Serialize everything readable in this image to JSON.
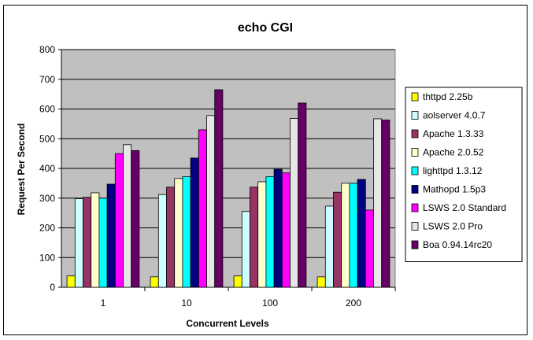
{
  "chart_data": {
    "type": "bar",
    "title": "echo CGI",
    "xlabel": "Concurrent Levels",
    "ylabel": "Request Per Second",
    "categories": [
      "1",
      "10",
      "100",
      "200"
    ],
    "ylim": [
      0,
      800
    ],
    "yticks": [
      0,
      100,
      200,
      300,
      400,
      500,
      600,
      700,
      800
    ],
    "grid": "horizontal",
    "legend_position": "right",
    "plot_background": "#c0c0c0",
    "series": [
      {
        "name": "thttpd 2.25b",
        "color": "#ffff00",
        "values": [
          38,
          35,
          38,
          35
        ]
      },
      {
        "name": "aolserver 4.0.7",
        "color": "#ccffff",
        "values": [
          298,
          312,
          255,
          273
        ]
      },
      {
        "name": "Apache 1.3.33",
        "color": "#993366",
        "values": [
          303,
          337,
          337,
          320
        ]
      },
      {
        "name": "Apache 2.0.52",
        "color": "#ffffcc",
        "values": [
          318,
          366,
          355,
          350
        ]
      },
      {
        "name": "lighttpd 1.3.12",
        "color": "#00ffff",
        "values": [
          300,
          372,
          372,
          350
        ]
      },
      {
        "name": "Mathopd 1.5p3",
        "color": "#000080",
        "values": [
          347,
          435,
          397,
          363
        ]
      },
      {
        "name": "LSWS 2.0 Standard",
        "color": "#ff00ff",
        "values": [
          450,
          530,
          385,
          260
        ]
      },
      {
        "name": "LSWS 2.0 Pro",
        "color": "#e6e6e6",
        "values": [
          480,
          578,
          568,
          567
        ]
      },
      {
        "name": "Boa 0.94.14rc20",
        "color": "#660066",
        "values": [
          460,
          665,
          620,
          563
        ]
      }
    ]
  }
}
